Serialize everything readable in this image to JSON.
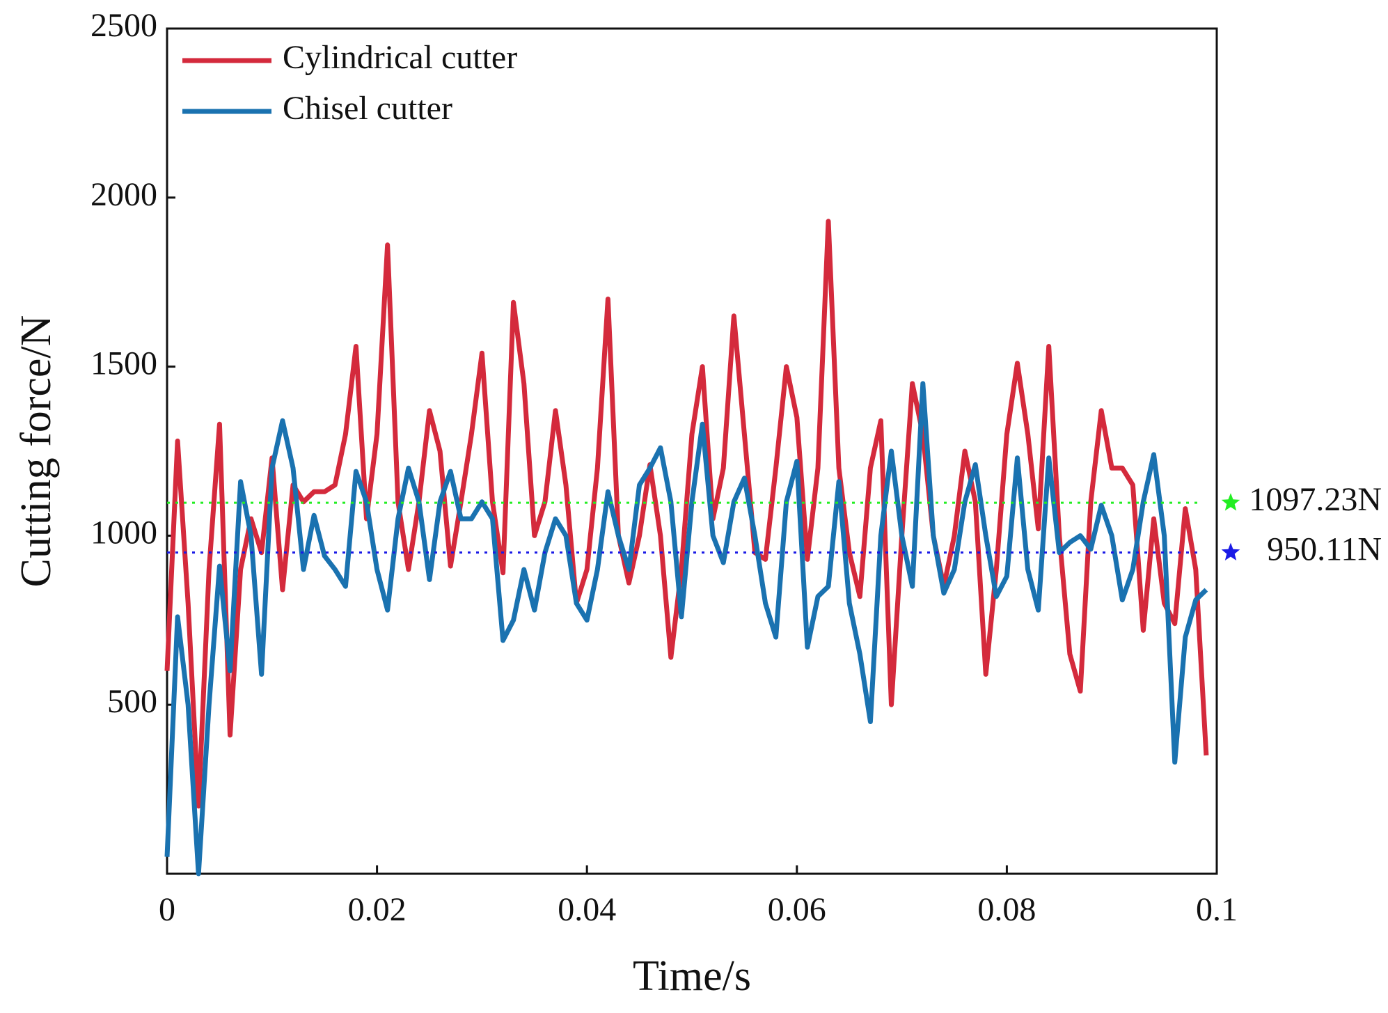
{
  "chart_data": {
    "type": "line",
    "x_label": "Time/s",
    "y_label": "Cutting force/N",
    "x": [
      0,
      0.001,
      0.002,
      0.003,
      0.004,
      0.005,
      0.006,
      0.007,
      0.008,
      0.009,
      0.01,
      0.011,
      0.012,
      0.013,
      0.014,
      0.015,
      0.016,
      0.017,
      0.018,
      0.019,
      0.02,
      0.021,
      0.022,
      0.023,
      0.024,
      0.025,
      0.026,
      0.027,
      0.028,
      0.029,
      0.03,
      0.031,
      0.032,
      0.033,
      0.034,
      0.035,
      0.036,
      0.037,
      0.038,
      0.039,
      0.04,
      0.041,
      0.042,
      0.043,
      0.044,
      0.045,
      0.046,
      0.047,
      0.048,
      0.049,
      0.05,
      0.051,
      0.052,
      0.053,
      0.054,
      0.055,
      0.056,
      0.057,
      0.058,
      0.059,
      0.06,
      0.061,
      0.062,
      0.063,
      0.064,
      0.065,
      0.066,
      0.067,
      0.068,
      0.069,
      0.07,
      0.071,
      0.072,
      0.073,
      0.074,
      0.075,
      0.076,
      0.077,
      0.078,
      0.079,
      0.08,
      0.081,
      0.082,
      0.083,
      0.084,
      0.085,
      0.086,
      0.087,
      0.088,
      0.089,
      0.09,
      0.091,
      0.092,
      0.093,
      0.094,
      0.095,
      0.096,
      0.097,
      0.098,
      0.099
    ],
    "series": [
      {
        "name": "Cylindrical cutter",
        "color": "#d42a3c",
        "values": [
          600,
          1280,
          800,
          200,
          900,
          1330,
          410,
          900,
          1050,
          950,
          1230,
          840,
          1150,
          1100,
          1130,
          1130,
          1150,
          1300,
          1560,
          1050,
          1300,
          1860,
          1100,
          900,
          1100,
          1370,
          1250,
          910,
          1100,
          1300,
          1540,
          1100,
          890,
          1690,
          1450,
          1000,
          1100,
          1370,
          1150,
          800,
          900,
          1200,
          1700,
          1000,
          860,
          1000,
          1210,
          1000,
          640,
          900,
          1300,
          1500,
          1050,
          1200,
          1650,
          1300,
          950,
          930,
          1200,
          1500,
          1350,
          930,
          1200,
          1930,
          1200,
          950,
          820,
          1200,
          1340,
          500,
          1000,
          1450,
          1300,
          1000,
          850,
          1000,
          1250,
          1100,
          590,
          900,
          1300,
          1510,
          1300,
          1020,
          1560,
          1000,
          650,
          540,
          1100,
          1370,
          1200,
          1200,
          1150,
          720,
          1050,
          800,
          740,
          1080,
          900,
          350
        ]
      },
      {
        "name": "Chisel cutter",
        "color": "#1a72b0",
        "values": [
          50,
          760,
          500,
          0,
          500,
          910,
          600,
          1160,
          1000,
          590,
          1200,
          1340,
          1200,
          900,
          1060,
          940,
          900,
          850,
          1190,
          1100,
          900,
          780,
          1050,
          1200,
          1100,
          870,
          1100,
          1190,
          1050,
          1050,
          1100,
          1050,
          690,
          750,
          900,
          780,
          950,
          1050,
          1000,
          800,
          750,
          900,
          1130,
          1000,
          900,
          1150,
          1200,
          1260,
          1100,
          760,
          1100,
          1330,
          1000,
          920,
          1100,
          1170,
          1000,
          800,
          700,
          1100,
          1220,
          670,
          820,
          850,
          1160,
          800,
          650,
          450,
          1000,
          1250,
          1000,
          850,
          1450,
          1000,
          830,
          900,
          1100,
          1210,
          1000,
          820,
          880,
          1230,
          900,
          780,
          1230,
          950,
          980,
          1000,
          960,
          1090,
          1000,
          810,
          900,
          1100,
          1240,
          1000,
          330,
          700,
          810,
          840
        ]
      }
    ],
    "annotations": [
      {
        "value": 1097.23,
        "label": "1097.23N",
        "color": "#22ee22"
      },
      {
        "value": 950.11,
        "label": "950.11N",
        "color": "#1a1ae6"
      }
    ],
    "xlim": [
      0,
      0.1
    ],
    "xticks": [
      0,
      0.02,
      0.04,
      0.06,
      0.08,
      0.1
    ],
    "ylim": [
      0,
      2500
    ],
    "yticks": [
      500,
      1000,
      1500,
      2000,
      2500
    ],
    "legend": "upper left",
    "grid": false
  }
}
